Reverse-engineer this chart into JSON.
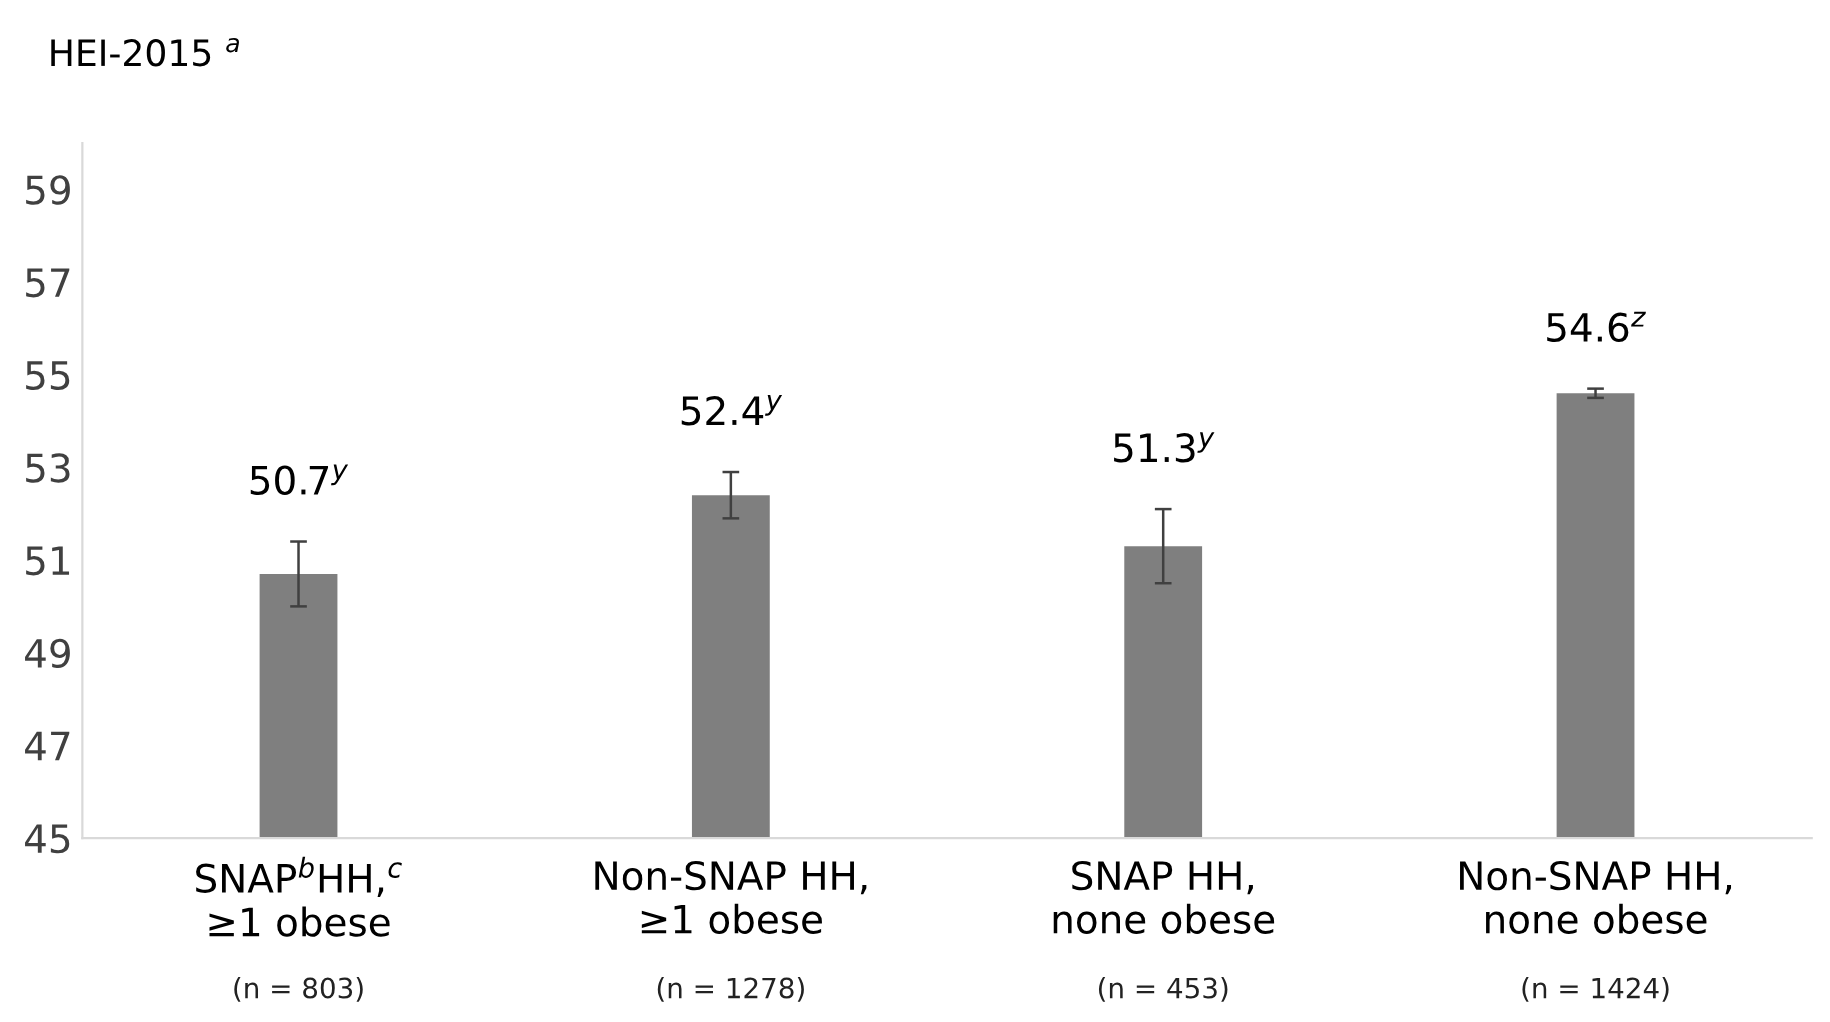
{
  "chart_data": {
    "type": "bar",
    "ylabel": "HEI-2015 $^{a}$",
    "categories": [
      "SNAP$^{b}$HH,$^{c}$\n≥1 obese\n(n = 803)",
      "Non-SNAP HH,\n≥1 obese\n(n = 1278)",
      "SNAP HH,\nnone obese\n(n = 453)",
      "Non-SNAP HH,\nnone obese\n(n = 1424)"
    ],
    "values": [
      50.7,
      52.4,
      51.3,
      54.6
    ],
    "errors": [
      0.7,
      0.5,
      0.8,
      0.1
    ],
    "value_labels": [
      "50.7$^{y}$",
      "52.4$^{y}$",
      "51.3$^{y}$",
      "54.6$^{z}$"
    ],
    "color": "#7f7f7f",
    "ylim": [
      45,
      60
    ],
    "yticks": [
      45,
      47,
      49,
      51,
      53,
      55,
      57,
      59
    ],
    "grid": false
  }
}
